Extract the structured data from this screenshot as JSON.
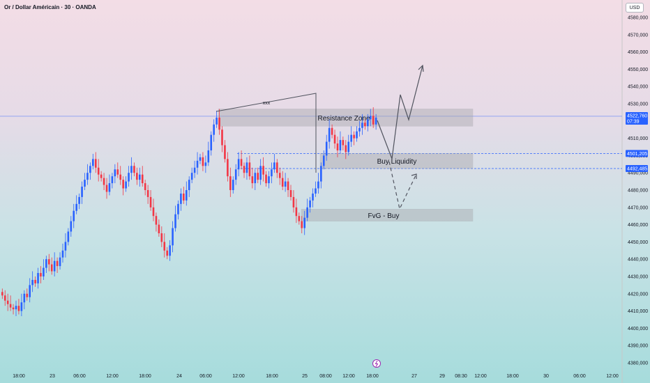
{
  "header": {
    "title": "Or / Dollar Américain · 30 · OANDA",
    "currency": "USD"
  },
  "chart_data": {
    "type": "candlestick",
    "title": "Or / Dollar Américain · 30 · OANDA",
    "ylim": [
      4376,
      4590
    ],
    "y_ticks": [
      4380,
      4390,
      4400,
      4410,
      4420,
      4430,
      4440,
      4450,
      4460,
      4470,
      4480,
      4490,
      4500,
      4510,
      4520,
      4530,
      4540,
      4550,
      4560,
      4570,
      4580
    ],
    "y_tick_labels": [
      "4380,000",
      "4390,000",
      "4400,000",
      "4410,000",
      "4420,000",
      "4430,000",
      "4440,000",
      "4450,000",
      "4460,000",
      "4470,000",
      "4480,000",
      "4490,000",
      "4500,000",
      "4510,000",
      "4520,000",
      "4530,000",
      "4540,000",
      "4550,000",
      "4560,000",
      "4570,000",
      "4580,000"
    ],
    "x_tick_labels": [
      "18:00",
      "23",
      "06:00",
      "12:00",
      "18:00",
      "24",
      "06:00",
      "12:00",
      "18:00",
      "25",
      "08:00",
      "12:00",
      "18:00",
      "27",
      "29",
      "08:30",
      "12:00",
      "18:00",
      "30",
      "06:00",
      "12:00"
    ],
    "price_badges": [
      {
        "value": 4522.76,
        "label": "4522,760",
        "sub": "07:39",
        "color": "#2962ff"
      },
      {
        "value": 4501.205,
        "label": "4501,205",
        "color": "#2962ff"
      },
      {
        "value": 4492.485,
        "label": "4492,485",
        "color": "#2962ff"
      }
    ],
    "zones": [
      {
        "name": "Resistance Zone",
        "low": 4517,
        "high": 4527
      },
      {
        "name": "Buy Liquidity",
        "low": 4492.5,
        "high": 4501.2
      },
      {
        "name": "FvG - Buy",
        "low": 4462,
        "high": 4469
      }
    ],
    "annotation": "xxx",
    "up_color": "#2962ff",
    "down_color": "#f23645"
  }
}
